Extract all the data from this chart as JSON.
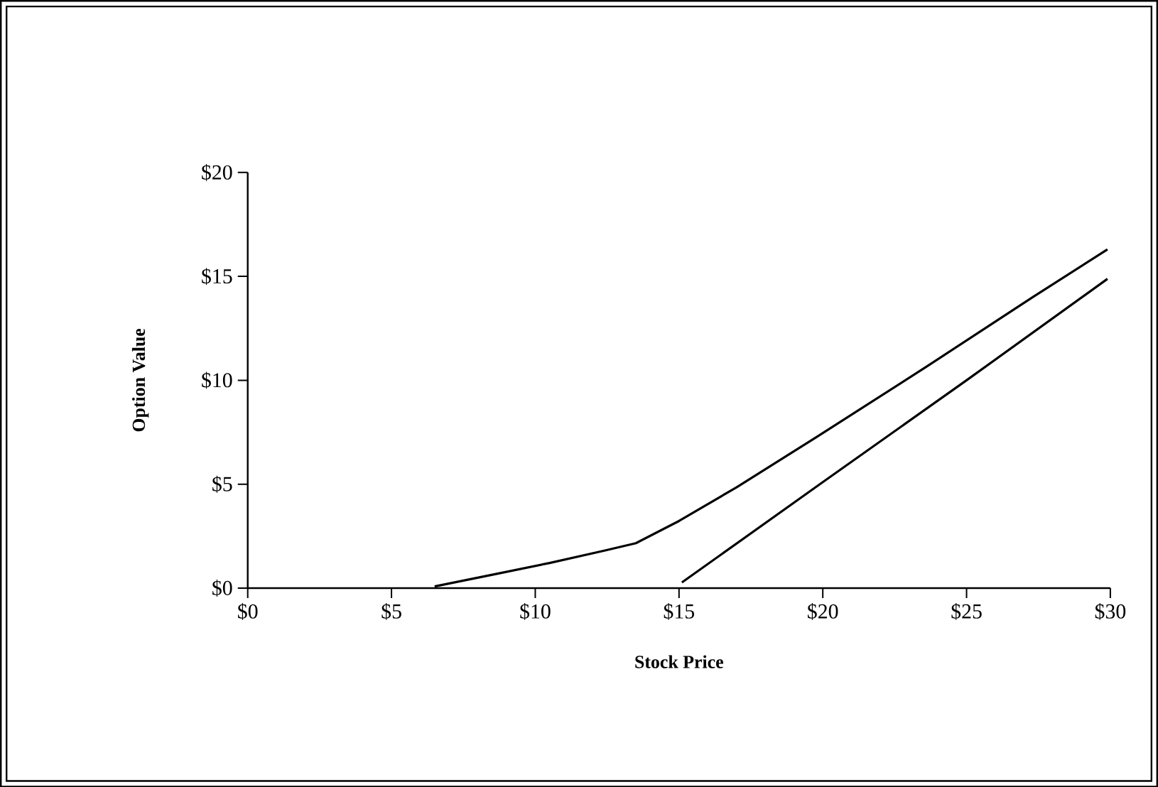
{
  "chart_data": {
    "type": "line",
    "xlabel": "Stock Price",
    "ylabel": "Option Value",
    "xlim": [
      0,
      30
    ],
    "ylim": [
      0,
      20
    ],
    "xticks": [
      {
        "value": 0,
        "label": "$0"
      },
      {
        "value": 5,
        "label": "$5"
      },
      {
        "value": 10,
        "label": "$10"
      },
      {
        "value": 15,
        "label": "$15"
      },
      {
        "value": 20,
        "label": "$20"
      },
      {
        "value": 25,
        "label": "$25"
      },
      {
        "value": 30,
        "label": "$30"
      }
    ],
    "yticks": [
      {
        "value": 0,
        "label": "$0"
      },
      {
        "value": 5,
        "label": "$5"
      },
      {
        "value": 10,
        "label": "$10"
      },
      {
        "value": 15,
        "label": "$15"
      },
      {
        "value": 20,
        "label": "$20"
      }
    ],
    "series": [
      {
        "color": "#000000",
        "x": [
          6.5,
          8.6,
          10.5,
          12.4,
          13.5,
          15.0,
          17.0,
          19.8,
          23.6,
          27.3,
          29.9
        ],
        "values": [
          0.08,
          0.67,
          1.21,
          1.8,
          2.16,
          3.23,
          4.85,
          7.28,
          10.65,
          14.0,
          16.3
        ]
      },
      {
        "color": "#000000",
        "x": [
          15.1,
          20.0,
          25.0,
          29.9
        ],
        "values": [
          0.27,
          5.1,
          10.0,
          14.88
        ]
      }
    ]
  }
}
